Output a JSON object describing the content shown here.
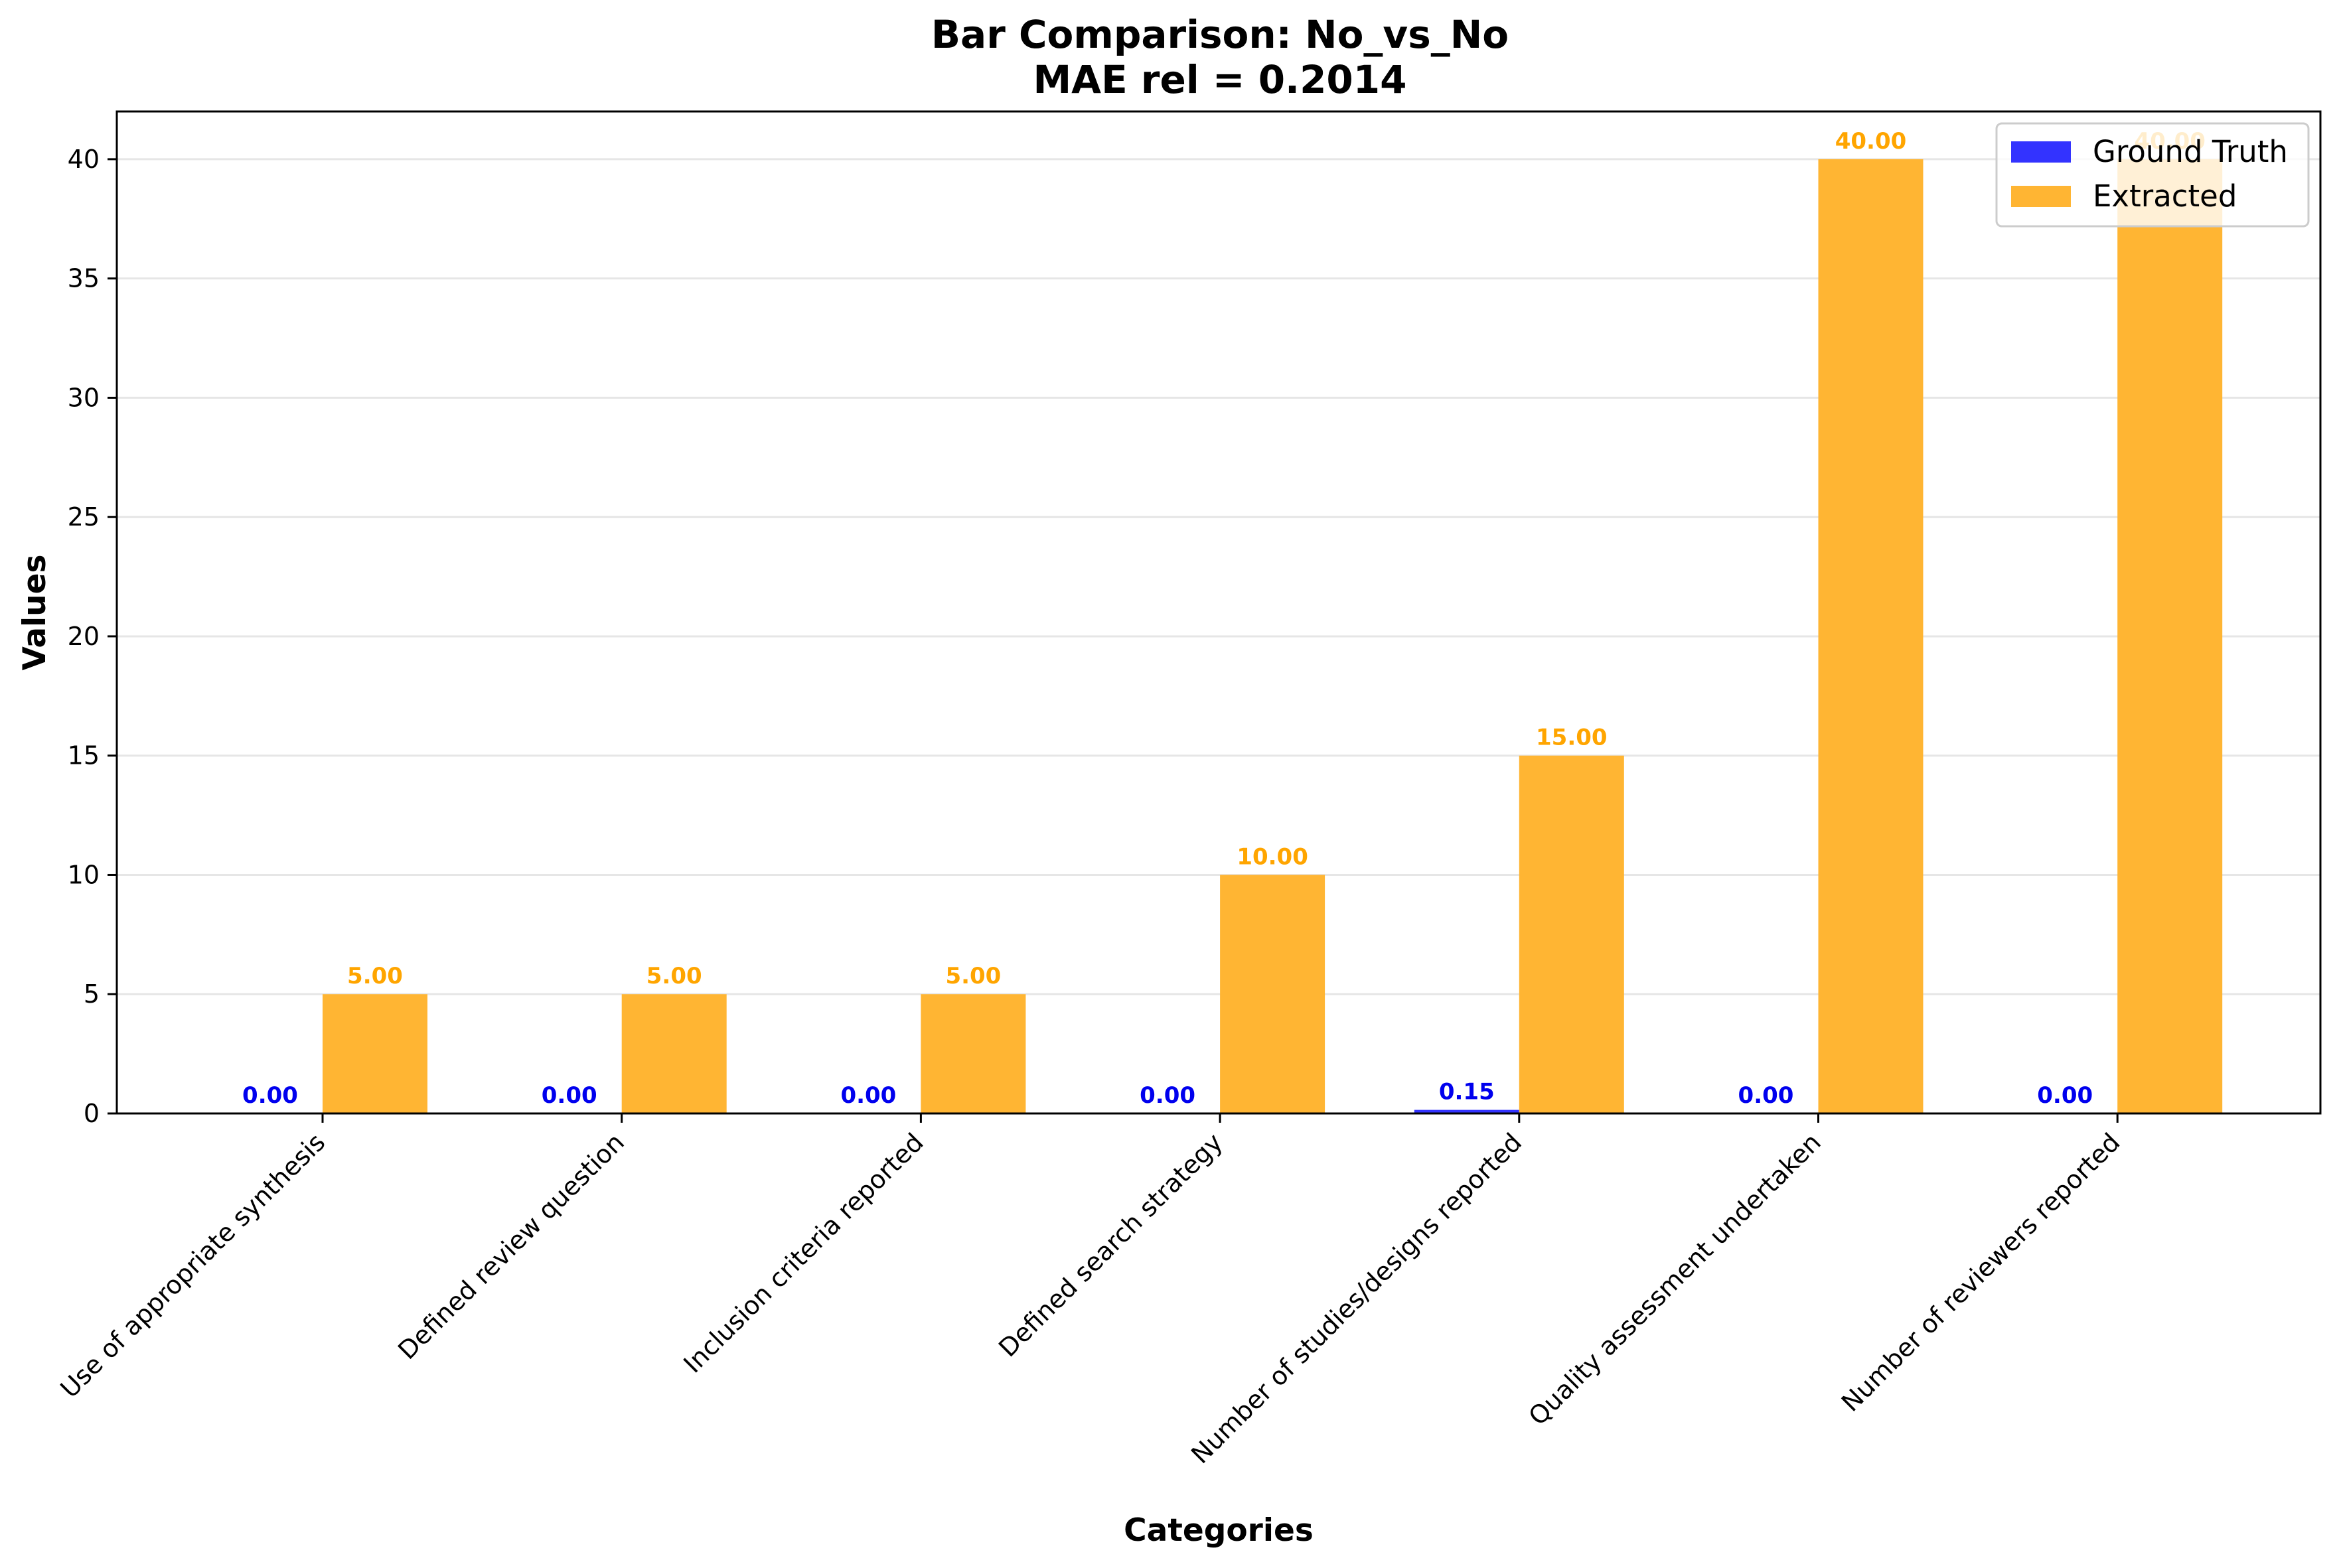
{
  "chart_data": {
    "type": "bar",
    "title": "Bar Comparison: No_vs_No",
    "subtitle": "MAE rel = 0.2014",
    "xlabel": "Categories",
    "ylabel": "Values",
    "ylim": [
      0,
      42
    ],
    "yticks": [
      0,
      5,
      10,
      15,
      20,
      25,
      30,
      35,
      40
    ],
    "grid": "horizontal",
    "legend_position": "top-right",
    "categories": [
      "Use of appropriate synthesis",
      "Defined review question",
      "Inclusion criteria reported",
      "Defined search strategy",
      "Number of studies/designs reported",
      "Quality assessment undertaken",
      "Number of reviewers reported"
    ],
    "series": [
      {
        "name": "Ground Truth",
        "color": "#3333ff",
        "label_color": "#0000ee",
        "values": [
          0.0,
          0.0,
          0.0,
          0.0,
          0.15,
          0.0,
          0.0
        ],
        "labels": [
          "0.00",
          "0.00",
          "0.00",
          "0.00",
          "0.15",
          "0.00",
          "0.00"
        ]
      },
      {
        "name": "Extracted",
        "color": "#ffb533",
        "label_color": "#ffa500",
        "values": [
          5,
          5,
          5,
          10,
          15,
          40,
          40
        ],
        "labels": [
          "5.00",
          "5.00",
          "5.00",
          "10.00",
          "15.00",
          "40.00",
          "40.00"
        ]
      }
    ]
  }
}
